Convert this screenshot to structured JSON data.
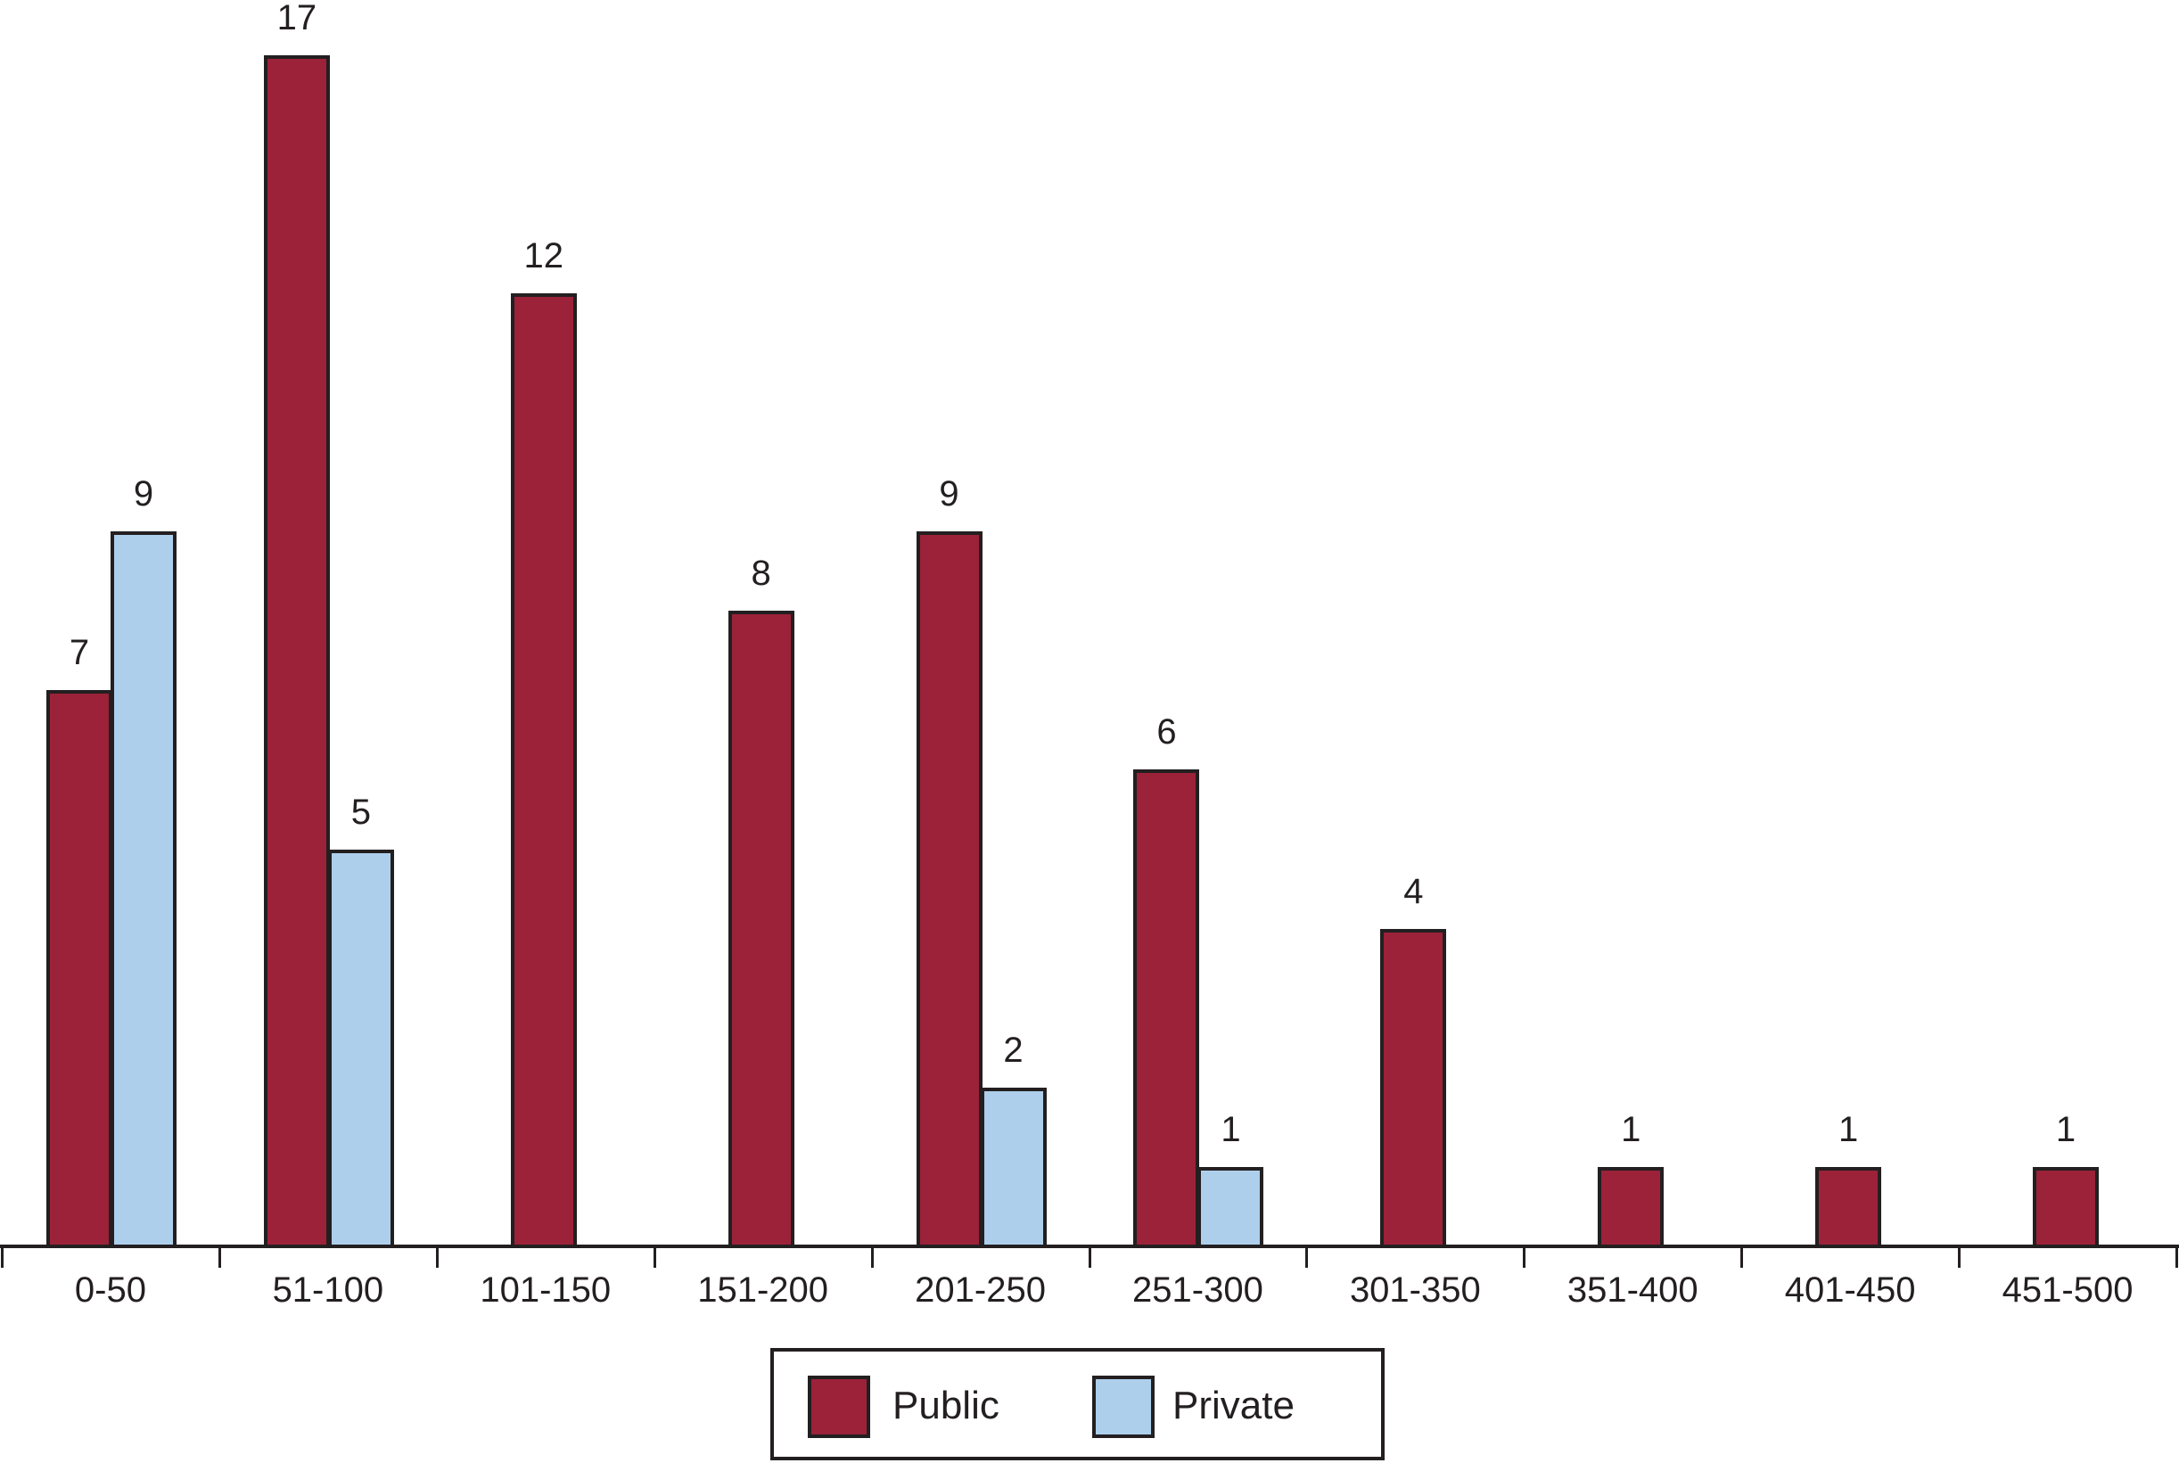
{
  "chart_data": {
    "type": "bar",
    "title": "",
    "xlabel": "",
    "ylabel": "",
    "categories": [
      "0-50",
      "51-100",
      "101-150",
      "151-200",
      "201-250",
      "251-300",
      "301-350",
      "351-400",
      "401-450",
      "451-500"
    ],
    "series": [
      {
        "name": "Public",
        "color": "#9b2239",
        "values": [
          7,
          17,
          12,
          8,
          9,
          6,
          4,
          1,
          1,
          1
        ]
      },
      {
        "name": "Private",
        "color": "#aecfec",
        "values": [
          9,
          5,
          0,
          0,
          2,
          1,
          0,
          0,
          0,
          0
        ]
      }
    ],
    "data_labels": true,
    "grid": false,
    "y_axis_visible": false,
    "legend_position": "bottom-center",
    "notes": "Zero-valued Private bars are not drawn; the 17 bar is drawn truncated at the top of the plot."
  },
  "legend": {
    "items": [
      {
        "label": "Public",
        "color": "#9b2239"
      },
      {
        "label": "Private",
        "color": "#aecfec"
      }
    ]
  }
}
